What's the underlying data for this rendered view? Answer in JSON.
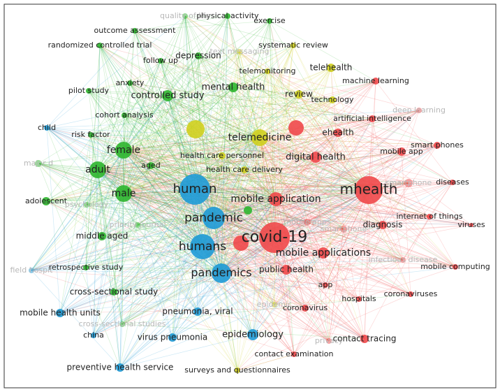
{
  "nodes": [
    {
      "label": "mhealth",
      "color": "#f0484a"
    },
    {
      "label": "covid-19",
      "color": "#f0484a"
    },
    {
      "label": "mobile application",
      "color": "#f0484a"
    },
    {
      "label": "digital health",
      "color": "#f0484a"
    },
    {
      "label": "ehealth",
      "color": "#f0484a"
    },
    {
      "label": "artificial intelligence",
      "color": "#f0484a"
    },
    {
      "label": "machine learning",
      "color": "#f0484a"
    },
    {
      "label": "deep learning",
      "color": "#f0484a"
    },
    {
      "label": "mobile app",
      "color": "#f0484a"
    },
    {
      "label": "smart phones",
      "color": "#f0484a"
    },
    {
      "label": "smartphone",
      "color": "#f0484a"
    },
    {
      "label": "diseases",
      "color": "#f0484a"
    },
    {
      "label": "internet of things",
      "color": "#f0484a"
    },
    {
      "label": "viruses",
      "color": "#f0484a"
    },
    {
      "label": "diagnosis",
      "color": "#f0484a"
    },
    {
      "label": "smartphone",
      "color": "#f0484a"
    },
    {
      "label": "mobile apps",
      "color": "#f0484a"
    },
    {
      "label": "infectious disease",
      "color": "#f0484a"
    },
    {
      "label": "mobile computing",
      "color": "#f0484a"
    },
    {
      "label": "mobile applications",
      "color": "#f0484a"
    },
    {
      "label": "public health",
      "color": "#f0484a"
    },
    {
      "label": "app",
      "color": "#f0484a"
    },
    {
      "label": "hospitals",
      "color": "#f0484a"
    },
    {
      "label": "coronaviruses",
      "color": "#f0484a"
    },
    {
      "label": "coronavirus",
      "color": "#f0484a"
    },
    {
      "label": "contact tracing",
      "color": "#f0484a"
    },
    {
      "label": "privacy",
      "color": "#f0484a"
    },
    {
      "label": "contact examination",
      "color": "#f0484a"
    },
    {
      "label": "telemedicine",
      "color": "#cfcf1e"
    },
    {
      "label": "telehealth",
      "color": "#cfcf1e"
    },
    {
      "label": "review",
      "color": "#cfcf1e"
    },
    {
      "label": "technology",
      "color": "#cfcf1e"
    },
    {
      "label": "telemonitoring",
      "color": "#cfcf1e"
    },
    {
      "label": "systematic review",
      "color": "#cfcf1e"
    },
    {
      "label": "text messaging",
      "color": "#cfcf1e"
    },
    {
      "label": "health care personnel",
      "color": "#cfcf1e"
    },
    {
      "label": "health care delivery",
      "color": "#cfcf1e"
    },
    {
      "label": "surveys and questionnaires",
      "color": "#cfcf1e"
    },
    {
      "label": "epidemic",
      "color": "#cfcf1e"
    },
    {
      "label": "female",
      "color": "#2db52d"
    },
    {
      "label": "adult",
      "color": "#2db52d"
    },
    {
      "label": "male",
      "color": "#2db52d"
    },
    {
      "label": "adolescent",
      "color": "#2db52d"
    },
    {
      "label": "aged",
      "color": "#2db52d"
    },
    {
      "label": "controlled study",
      "color": "#2db52d"
    },
    {
      "label": "mental health",
      "color": "#2db52d"
    },
    {
      "label": "depression",
      "color": "#2db52d"
    },
    {
      "label": "follow up",
      "color": "#2db52d"
    },
    {
      "label": "anxiety",
      "color": "#2db52d"
    },
    {
      "label": "pilot study",
      "color": "#2db52d"
    },
    {
      "label": "cohort analysis",
      "color": "#2db52d"
    },
    {
      "label": "risk factor",
      "color": "#2db52d"
    },
    {
      "label": "randomized controlled trial",
      "color": "#2db52d"
    },
    {
      "label": "outcome assessment",
      "color": "#2db52d"
    },
    {
      "label": "physical activity",
      "color": "#2db52d"
    },
    {
      "label": "quality of life",
      "color": "#2db52d"
    },
    {
      "label": "exercise",
      "color": "#2db52d"
    },
    {
      "label": "major d",
      "color": "#2db52d"
    },
    {
      "label": "psychology",
      "color": "#2db52d"
    },
    {
      "label": "middle aged",
      "color": "#2db52d"
    },
    {
      "label": "retrospective study",
      "color": "#2db52d"
    },
    {
      "label": "cross-sectional study",
      "color": "#2db52d"
    },
    {
      "label": "cross-sectional studies",
      "color": "#2db52d"
    },
    {
      "label": "priority journal",
      "color": "#2db52d"
    },
    {
      "label": "human",
      "color": "#1e9ad6"
    },
    {
      "label": "pandemic",
      "color": "#1e9ad6"
    },
    {
      "label": "humans",
      "color": "#1e9ad6"
    },
    {
      "label": "pandemics",
      "color": "#1e9ad6"
    },
    {
      "label": "child",
      "color": "#1e9ad6"
    },
    {
      "label": "field hospit",
      "color": "#1e9ad6"
    },
    {
      "label": "mobile health units",
      "color": "#1e9ad6"
    },
    {
      "label": "china",
      "color": "#1e9ad6"
    },
    {
      "label": "preventive health service",
      "color": "#1e9ad6"
    },
    {
      "label": "pneumonia, viral",
      "color": "#1e9ad6"
    },
    {
      "label": "virus pneumonia",
      "color": "#1e9ad6"
    },
    {
      "label": "epidemiology",
      "color": "#1e9ad6"
    }
  ]
}
